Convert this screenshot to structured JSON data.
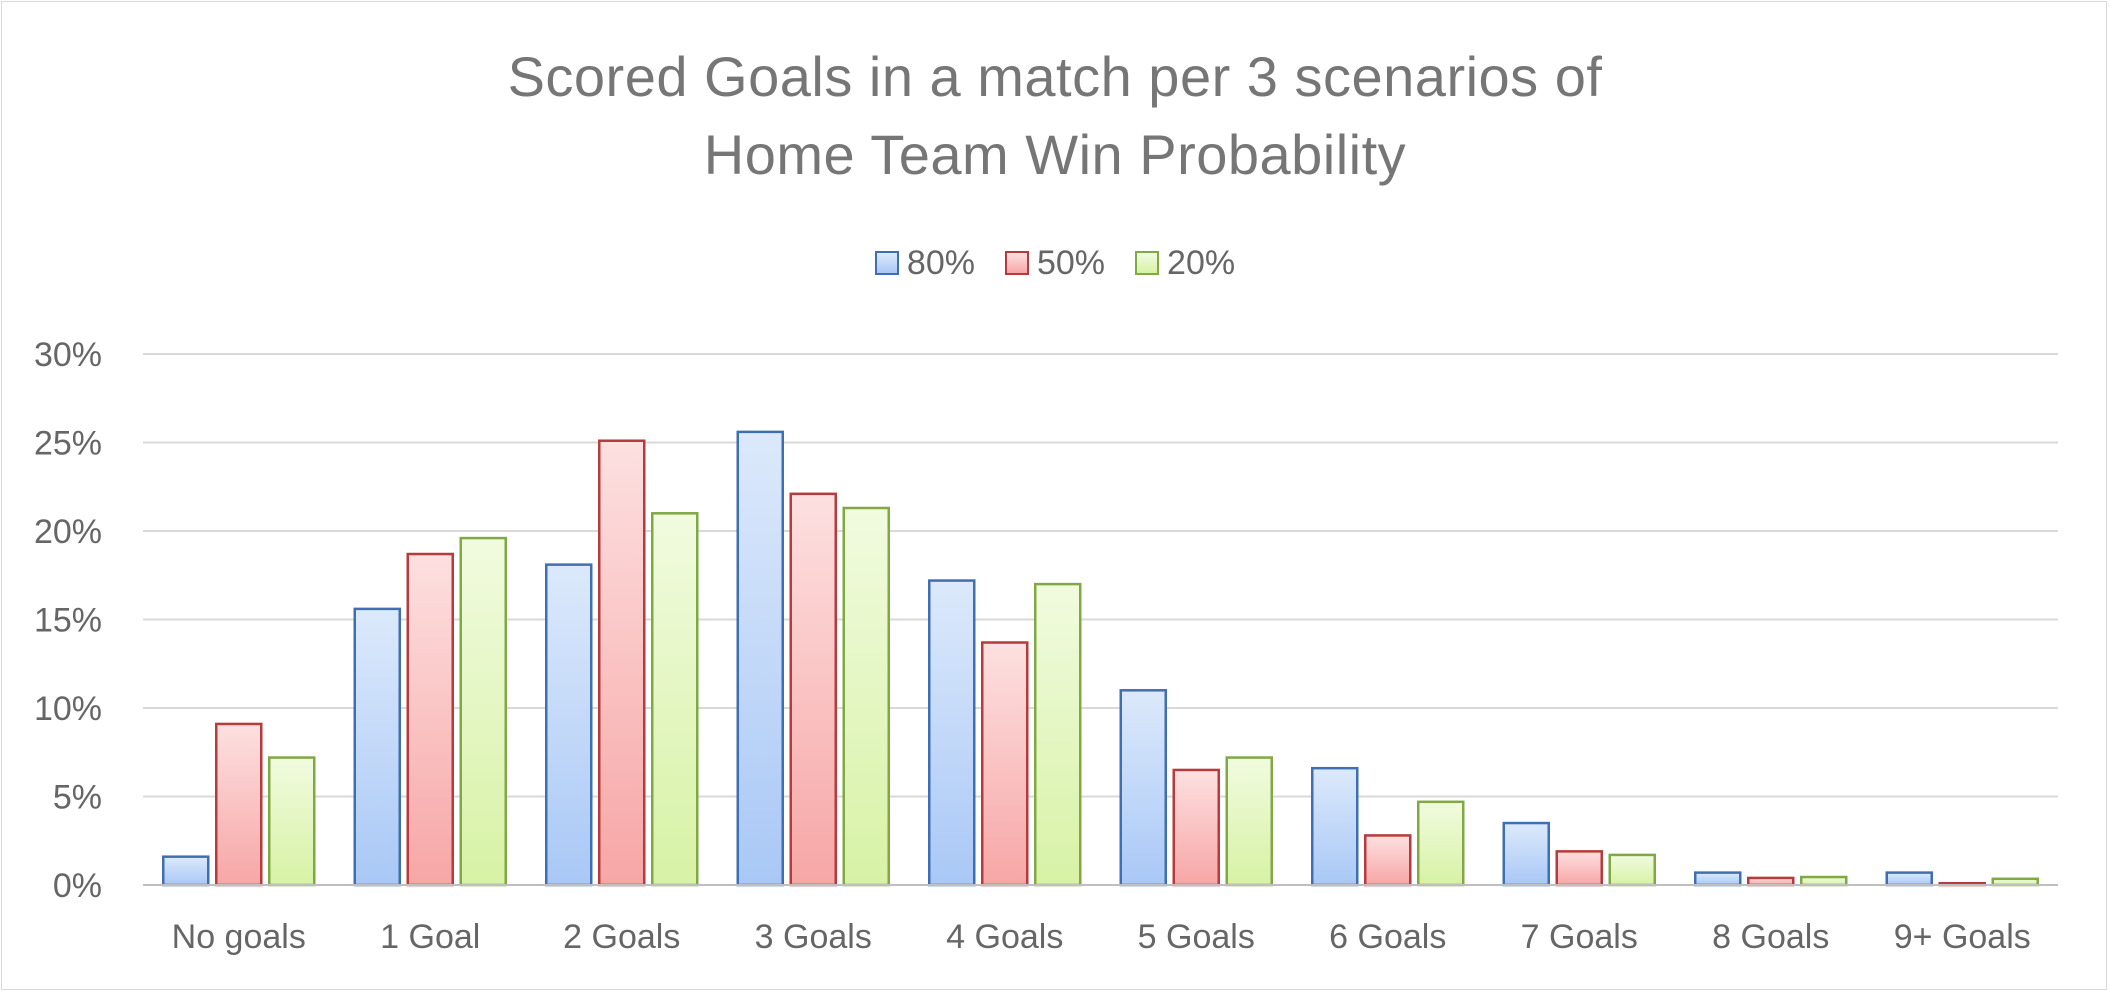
{
  "colors": {
    "series_fill_top": [
      "#dce9fb",
      "#fde0e0",
      "#f1fbdf"
    ],
    "series_fill_bottom": [
      "#a9c8f6",
      "#f7a6a6",
      "#d7f2a5"
    ],
    "series_stroke": [
      "#3f6fb3",
      "#b73a3c",
      "#80a844"
    ],
    "grid": "#d9d9d9",
    "axis": "#bfbfbf",
    "text": "#666666"
  },
  "chart_data": {
    "type": "bar",
    "title": "Scored Goals in a match per 3 scenarios of Home Team Win Probability",
    "title_lines": [
      "Scored Goals in a match per 3 scenarios of",
      "Home Team Win Probability"
    ],
    "xlabel": "",
    "ylabel": "",
    "categories": [
      "No goals",
      "1 Goal",
      "2 Goals",
      "3 Goals",
      "4 Goals",
      "5 Goals",
      "6 Goals",
      "7 Goals",
      "8 Goals",
      "9+ Goals"
    ],
    "series": [
      {
        "name": "80%",
        "values": [
          1.6,
          15.6,
          18.1,
          25.6,
          17.2,
          11.0,
          6.6,
          3.5,
          0.7,
          0.7
        ]
      },
      {
        "name": "50%",
        "values": [
          9.1,
          18.7,
          25.1,
          22.1,
          13.7,
          6.5,
          2.8,
          1.9,
          0.4,
          0.1
        ]
      },
      {
        "name": "20%",
        "values": [
          7.2,
          19.6,
          21.0,
          21.3,
          17.0,
          7.2,
          4.7,
          1.7,
          0.45,
          0.35
        ]
      }
    ],
    "ylim": [
      0,
      30
    ],
    "yticks": [
      0,
      5,
      10,
      15,
      20,
      25,
      30
    ],
    "ytick_labels": [
      "0%",
      "5%",
      "10%",
      "15%",
      "20%",
      "25%",
      "30%"
    ],
    "grid": true,
    "legend_position": "top-center"
  }
}
